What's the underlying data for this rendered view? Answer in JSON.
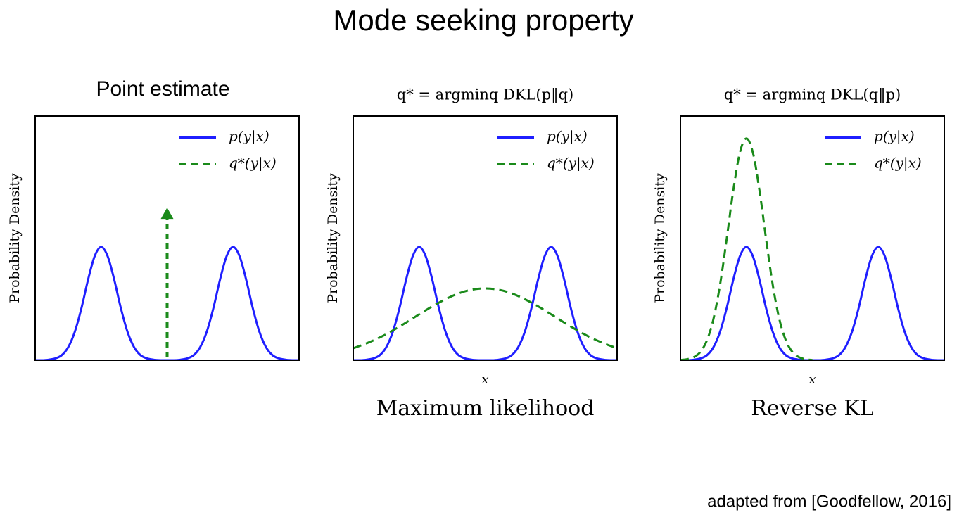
{
  "title": "Mode seeking property",
  "source": "adapted from [Goodfellow, 2016]",
  "chart_data": [
    {
      "type": "line",
      "title": "Point estimate",
      "ylabel": "Probability Density",
      "legend": "upper right",
      "xlim": [
        0,
        20
      ],
      "ylim": [
        0,
        1
      ],
      "series": [
        {
          "name": "p(y|x)",
          "color": "#1f1fff",
          "style": "solid",
          "x": [
            0,
            0.5,
            1,
            1.5,
            2,
            2.5,
            3,
            3.5,
            4,
            4.5,
            5,
            5.5,
            6,
            6.5,
            7,
            7.5,
            8,
            8.5,
            9,
            9.5,
            10,
            10.5,
            11,
            11.5,
            12,
            12.5,
            13,
            13.5,
            14,
            14.5,
            15,
            15.5,
            16,
            16.5,
            17,
            17.5,
            18,
            18.5,
            19,
            19.5,
            20
          ],
          "values": [
            0,
            0,
            0.002,
            0.007,
            0.02,
            0.053,
            0.116,
            0.212,
            0.328,
            0.425,
            0.464,
            0.425,
            0.328,
            0.212,
            0.116,
            0.053,
            0.02,
            0.007,
            0.002,
            0,
            0,
            0,
            0.002,
            0.007,
            0.02,
            0.053,
            0.116,
            0.212,
            0.328,
            0.425,
            0.464,
            0.425,
            0.328,
            0.212,
            0.116,
            0.053,
            0.02,
            0.007,
            0.002,
            0,
            0
          ]
        },
        {
          "name": "q*(y|x)",
          "color": "#1a8a1a",
          "style": "arrow",
          "x": [
            10
          ],
          "values": [
            0.625
          ]
        }
      ]
    },
    {
      "type": "line",
      "title": "q* = argminq DKL(p‖q)",
      "ylabel": "Probability Density",
      "xlabel": "x",
      "caption": "Maximum likelihood",
      "legend": "upper right",
      "xlim": [
        0,
        20
      ],
      "ylim": [
        0,
        1
      ],
      "series": [
        {
          "name": "p(y|x)",
          "color": "#1f1fff",
          "style": "solid",
          "x": [
            0,
            0.5,
            1,
            1.5,
            2,
            2.5,
            3,
            3.5,
            4,
            4.5,
            5,
            5.5,
            6,
            6.5,
            7,
            7.5,
            8,
            8.5,
            9,
            9.5,
            10,
            10.5,
            11,
            11.5,
            12,
            12.5,
            13,
            13.5,
            14,
            14.5,
            15,
            15.5,
            16,
            16.5,
            17,
            17.5,
            18,
            18.5,
            19,
            19.5,
            20
          ],
          "values": [
            0,
            0,
            0.002,
            0.007,
            0.02,
            0.053,
            0.116,
            0.212,
            0.328,
            0.425,
            0.464,
            0.425,
            0.328,
            0.212,
            0.116,
            0.053,
            0.02,
            0.007,
            0.002,
            0,
            0,
            0,
            0.002,
            0.007,
            0.02,
            0.053,
            0.116,
            0.212,
            0.328,
            0.425,
            0.464,
            0.425,
            0.328,
            0.212,
            0.116,
            0.053,
            0.02,
            0.007,
            0.002,
            0,
            0
          ]
        },
        {
          "name": "q*(y|x)",
          "color": "#1a8a1a",
          "style": "dashed",
          "x": [
            0,
            1,
            2,
            3,
            4,
            5,
            6,
            7,
            8,
            9,
            10,
            11,
            12,
            13,
            14,
            15,
            16,
            17,
            18,
            19,
            20
          ],
          "values": [
            0.049,
            0.069,
            0.093,
            0.122,
            0.154,
            0.188,
            0.221,
            0.25,
            0.274,
            0.289,
            0.294,
            0.289,
            0.274,
            0.25,
            0.221,
            0.188,
            0.154,
            0.122,
            0.093,
            0.069,
            0.049
          ]
        }
      ]
    },
    {
      "type": "line",
      "title": "q* = argminq DKL(q‖p)",
      "ylabel": "Probability Density",
      "xlabel": "x",
      "caption": "Reverse KL",
      "legend": "upper right",
      "xlim": [
        0,
        20
      ],
      "ylim": [
        0,
        1
      ],
      "series": [
        {
          "name": "p(y|x)",
          "color": "#1f1fff",
          "style": "solid",
          "x": [
            0,
            0.5,
            1,
            1.5,
            2,
            2.5,
            3,
            3.5,
            4,
            4.5,
            5,
            5.5,
            6,
            6.5,
            7,
            7.5,
            8,
            8.5,
            9,
            9.5,
            10,
            10.5,
            11,
            11.5,
            12,
            12.5,
            13,
            13.5,
            14,
            14.5,
            15,
            15.5,
            16,
            16.5,
            17,
            17.5,
            18,
            18.5,
            19,
            19.5,
            20
          ],
          "values": [
            0,
            0,
            0.002,
            0.007,
            0.02,
            0.053,
            0.116,
            0.212,
            0.328,
            0.425,
            0.464,
            0.425,
            0.328,
            0.212,
            0.116,
            0.053,
            0.02,
            0.007,
            0.002,
            0,
            0,
            0,
            0.002,
            0.007,
            0.02,
            0.053,
            0.116,
            0.212,
            0.328,
            0.425,
            0.464,
            0.425,
            0.328,
            0.212,
            0.116,
            0.053,
            0.02,
            0.007,
            0.002,
            0,
            0
          ]
        },
        {
          "name": "q*(y|x)",
          "color": "#1a8a1a",
          "style": "dashed",
          "x": [
            0,
            0.5,
            1,
            1.5,
            2,
            2.5,
            3,
            3.5,
            4,
            4.5,
            5,
            5.5,
            6,
            6.5,
            7,
            7.5,
            8,
            8.5,
            9,
            9.5,
            10
          ],
          "values": [
            0.001,
            0.004,
            0.012,
            0.033,
            0.08,
            0.168,
            0.308,
            0.494,
            0.693,
            0.849,
            0.908,
            0.849,
            0.693,
            0.494,
            0.308,
            0.168,
            0.08,
            0.033,
            0.012,
            0.004,
            0.001
          ]
        }
      ]
    }
  ]
}
